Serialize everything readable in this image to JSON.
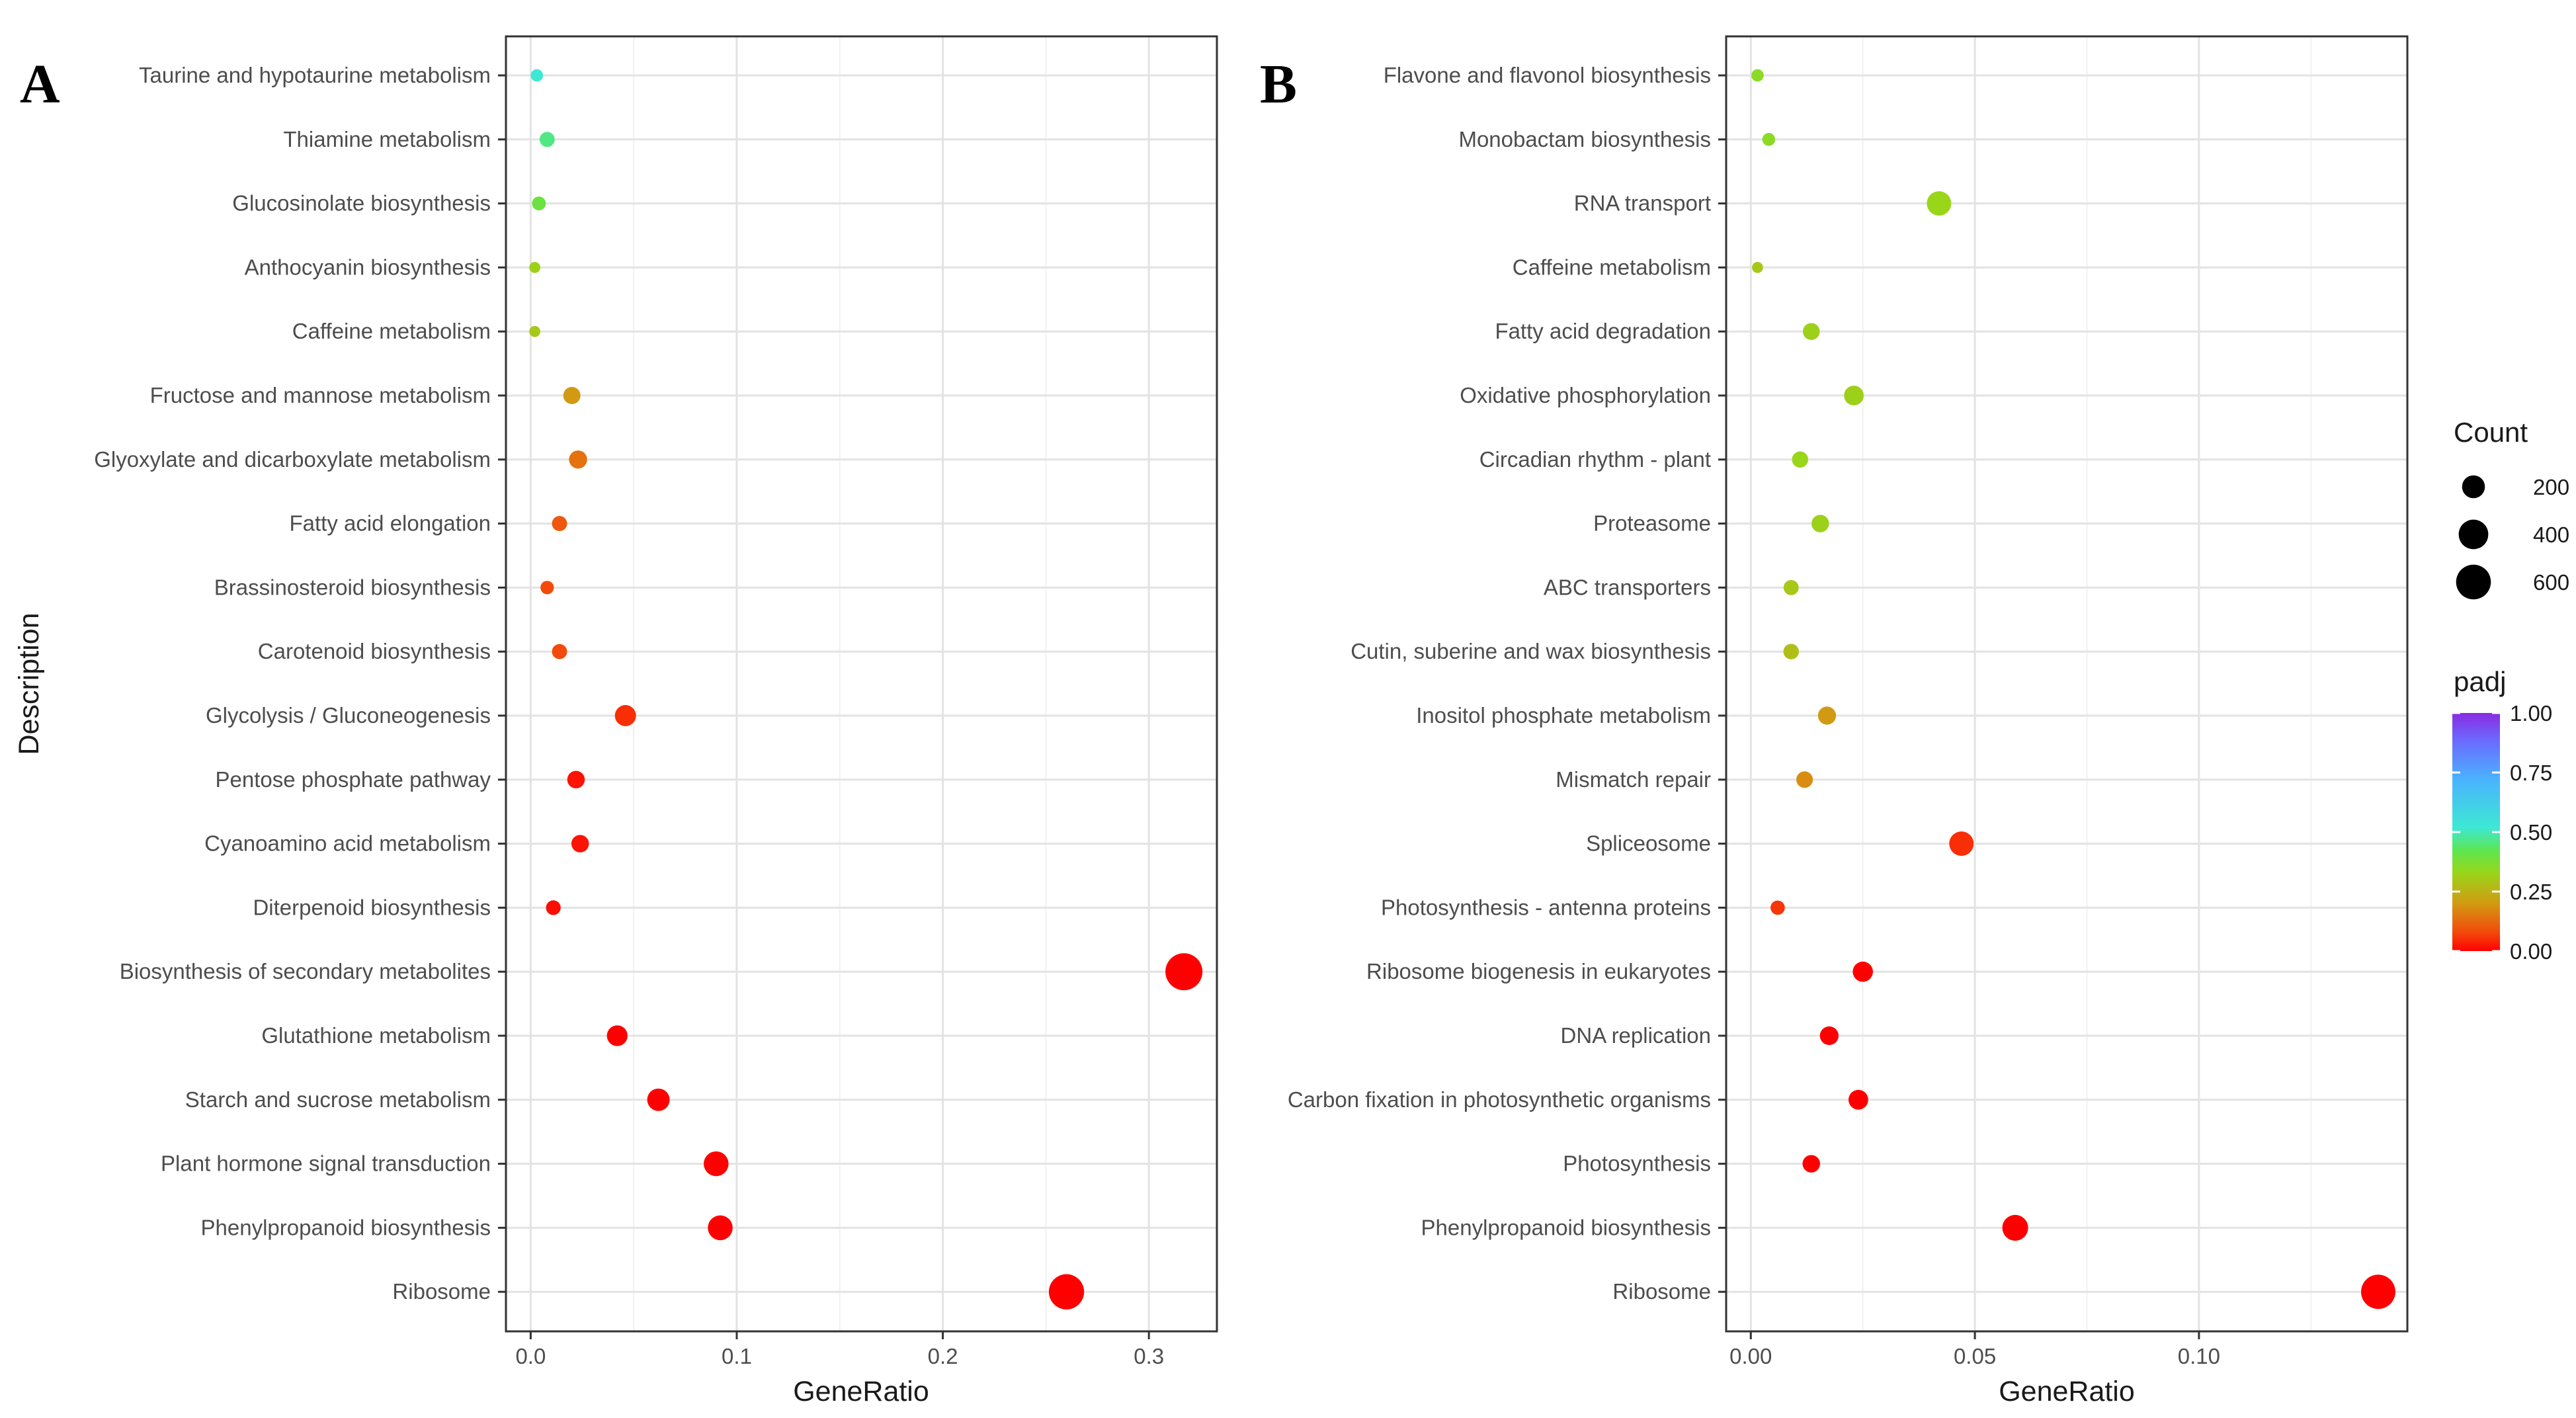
{
  "chart_data": [
    {
      "type": "scatter",
      "panel_label": "A",
      "xlabel": "GeneRatio",
      "ylabel": "Description",
      "xlim": [
        -0.012,
        0.333
      ],
      "x_major_ticks": [
        0.0,
        0.1,
        0.2,
        0.3
      ],
      "x_tick_labels": [
        "0.0",
        "0.1",
        "0.2",
        "0.3"
      ],
      "points": [
        {
          "label": "Taurine and hypotaurine metabolism",
          "gene_ratio": 0.003,
          "count": 25,
          "padj": 0.52
        },
        {
          "label": "Thiamine metabolism",
          "gene_ratio": 0.008,
          "count": 55,
          "padj": 0.46
        },
        {
          "label": "Glucosinolate biosynthesis",
          "gene_ratio": 0.004,
          "count": 40,
          "padj": 0.4
        },
        {
          "label": "Anthocyanin biosynthesis",
          "gene_ratio": 0.002,
          "count": 15,
          "padj": 0.32
        },
        {
          "label": "Caffeine metabolism",
          "gene_ratio": 0.002,
          "count": 15,
          "padj": 0.3
        },
        {
          "label": "Fructose and mannose metabolism",
          "gene_ratio": 0.02,
          "count": 85,
          "padj": 0.2
        },
        {
          "label": "Glyoxylate and dicarboxylate metabolism",
          "gene_ratio": 0.023,
          "count": 100,
          "padj": 0.14
        },
        {
          "label": "Fatty acid elongation",
          "gene_ratio": 0.014,
          "count": 55,
          "padj": 0.1
        },
        {
          "label": "Brassinosteroid biosynthesis",
          "gene_ratio": 0.008,
          "count": 35,
          "padj": 0.08
        },
        {
          "label": "Carotenoid biosynthesis",
          "gene_ratio": 0.014,
          "count": 55,
          "padj": 0.08
        },
        {
          "label": "Glycolysis / Gluconeogenesis",
          "gene_ratio": 0.046,
          "count": 160,
          "padj": 0.05
        },
        {
          "label": "Pentose phosphate pathway",
          "gene_ratio": 0.022,
          "count": 90,
          "padj": 0.02
        },
        {
          "label": "Cyanoamino acid metabolism",
          "gene_ratio": 0.024,
          "count": 90,
          "padj": 0.02
        },
        {
          "label": "Diterpenoid biosynthesis",
          "gene_ratio": 0.011,
          "count": 50,
          "padj": 0.015
        },
        {
          "label": "Biosynthesis of secondary metabolites",
          "gene_ratio": 0.317,
          "count": 700,
          "padj": 0.0
        },
        {
          "label": "Glutathione metabolism",
          "gene_ratio": 0.042,
          "count": 150,
          "padj": 0.0
        },
        {
          "label": "Starch and sucrose metabolism",
          "gene_ratio": 0.062,
          "count": 190,
          "padj": 0.0
        },
        {
          "label": "Plant hormone signal transduction",
          "gene_ratio": 0.09,
          "count": 250,
          "padj": 0.0
        },
        {
          "label": "Phenylpropanoid biosynthesis",
          "gene_ratio": 0.092,
          "count": 250,
          "padj": 0.0
        },
        {
          "label": "Ribosome",
          "gene_ratio": 0.26,
          "count": 620,
          "padj": 0.0
        }
      ]
    },
    {
      "type": "scatter",
      "panel_label": "B",
      "xlabel": "GeneRatio",
      "ylabel": "",
      "xlim": [
        -0.0055,
        0.1465
      ],
      "x_major_ticks": [
        0.0,
        0.05,
        0.1
      ],
      "x_tick_labels": [
        "0.00",
        "0.05",
        "0.10"
      ],
      "points": [
        {
          "label": "Flavone and flavonol biosynthesis",
          "gene_ratio": 0.0015,
          "count": 25,
          "padj": 0.35
        },
        {
          "label": "Monobactam biosynthesis",
          "gene_ratio": 0.004,
          "count": 30,
          "padj": 0.35
        },
        {
          "label": "RNA transport",
          "gene_ratio": 0.042,
          "count": 240,
          "padj": 0.33
        },
        {
          "label": "Caffeine metabolism",
          "gene_ratio": 0.0015,
          "count": 15,
          "padj": 0.3
        },
        {
          "label": "Fatty acid degradation",
          "gene_ratio": 0.0135,
          "count": 80,
          "padj": 0.32
        },
        {
          "label": "Oxidative phosphorylation",
          "gene_ratio": 0.023,
          "count": 130,
          "padj": 0.32
        },
        {
          "label": "Circadian rhythm - plant",
          "gene_ratio": 0.011,
          "count": 70,
          "padj": 0.33
        },
        {
          "label": "Proteasome",
          "gene_ratio": 0.0155,
          "count": 90,
          "padj": 0.32
        },
        {
          "label": "ABC transporters",
          "gene_ratio": 0.009,
          "count": 55,
          "padj": 0.3
        },
        {
          "label": "Cutin, suberine and wax biosynthesis",
          "gene_ratio": 0.009,
          "count": 60,
          "padj": 0.28
        },
        {
          "label": "Inositol phosphate metabolism",
          "gene_ratio": 0.017,
          "count": 100,
          "padj": 0.2
        },
        {
          "label": "Mismatch repair",
          "gene_ratio": 0.012,
          "count": 75,
          "padj": 0.18
        },
        {
          "label": "Spliceosome",
          "gene_ratio": 0.047,
          "count": 240,
          "padj": 0.05
        },
        {
          "label": "Photosynthesis - antenna proteins",
          "gene_ratio": 0.006,
          "count": 45,
          "padj": 0.06
        },
        {
          "label": "Ribosome biogenesis in eukaryotes",
          "gene_ratio": 0.025,
          "count": 140,
          "padj": 0.0
        },
        {
          "label": "DNA replication",
          "gene_ratio": 0.0175,
          "count": 110,
          "padj": 0.0
        },
        {
          "label": "Carbon fixation in photosynthetic organisms",
          "gene_ratio": 0.024,
          "count": 130,
          "padj": 0.0
        },
        {
          "label": "Photosynthesis",
          "gene_ratio": 0.0135,
          "count": 90,
          "padj": 0.0
        },
        {
          "label": "Phenylpropanoid biosynthesis",
          "gene_ratio": 0.059,
          "count": 280,
          "padj": 0.0
        },
        {
          "label": "Ribosome",
          "gene_ratio": 0.14,
          "count": 580,
          "padj": 0.0
        }
      ]
    }
  ],
  "legend": {
    "size_title": "Count",
    "size_entries": [
      {
        "label": "200",
        "value": 200
      },
      {
        "label": "400",
        "value": 400
      },
      {
        "label": "600",
        "value": 600
      }
    ],
    "color_title": "padj",
    "color_ticks": [
      {
        "label": "1.00",
        "value": 1.0
      },
      {
        "label": "0.75",
        "value": 0.75
      },
      {
        "label": "0.50",
        "value": 0.5
      },
      {
        "label": "0.25",
        "value": 0.25
      },
      {
        "label": "0.00",
        "value": 0.0
      }
    ],
    "color_stops": [
      {
        "value": 0.0,
        "color": "#ff0000"
      },
      {
        "value": 0.08,
        "color": "#f34a0b"
      },
      {
        "value": 0.2,
        "color": "#d29a12"
      },
      {
        "value": 0.33,
        "color": "#99d61a"
      },
      {
        "value": 0.42,
        "color": "#5ee64e"
      },
      {
        "value": 0.52,
        "color": "#3de8d4"
      },
      {
        "value": 0.72,
        "color": "#4ab3ff"
      },
      {
        "value": 0.88,
        "color": "#6a6cff"
      },
      {
        "value": 1.0,
        "color": "#8a2be2"
      }
    ]
  }
}
